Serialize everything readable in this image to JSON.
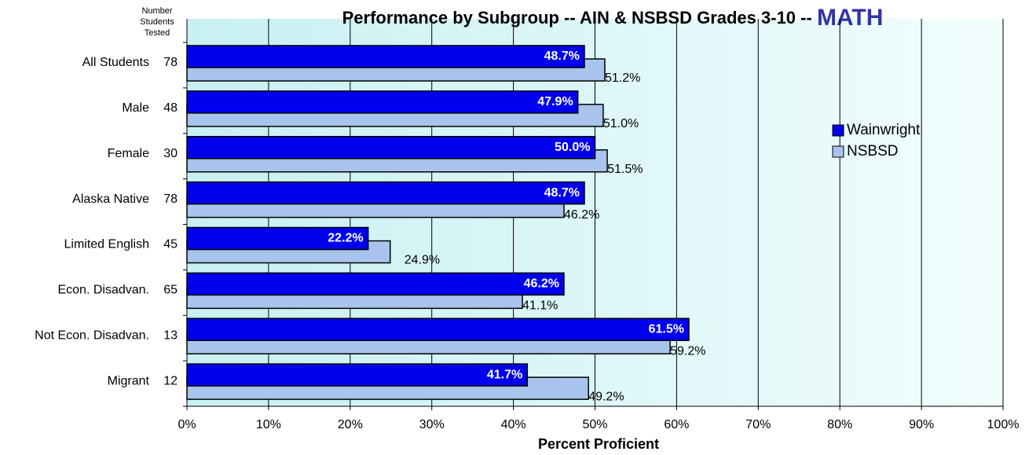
{
  "chart_data": {
    "type": "bar",
    "orientation": "horizontal",
    "title": "Performance by Subgroup -- AIN & NSBSD Grades 3-10 --",
    "title_highlight": "MATH",
    "count_header": [
      "Number",
      "Students",
      "Tested"
    ],
    "categories": [
      "All Students",
      "Male",
      "Female",
      "Alaska Native",
      "Limited English",
      "Econ. Disadvan.",
      "Not Econ. Disadvan.",
      "Migrant"
    ],
    "students_tested": [
      78,
      48,
      30,
      78,
      45,
      65,
      13,
      12
    ],
    "series": [
      {
        "name": "Wainwright",
        "color": "#0000ee",
        "values": [
          48.7,
          47.9,
          50.0,
          48.7,
          22.2,
          46.2,
          61.5,
          41.7
        ],
        "value_labels": [
          "48.7%",
          "47.9%",
          "50.0%",
          "48.7%",
          "22.2%",
          "46.2%",
          "61.5%",
          "41.7%"
        ]
      },
      {
        "name": "NSBSD",
        "color": "#a8c4ec",
        "values": [
          51.2,
          51.0,
          51.5,
          46.2,
          24.9,
          41.1,
          59.2,
          49.2
        ],
        "value_labels": [
          "51.2%",
          "51.0%",
          "51.5%",
          "46.2%",
          "24.9%",
          "41.1%",
          "59.2%",
          "49.2%"
        ]
      }
    ],
    "x_label": "Percent Proficient",
    "xlim": [
      0,
      100
    ],
    "xticks": [
      {
        "value": 0,
        "label": "0%"
      },
      {
        "value": 10,
        "label": "10%"
      },
      {
        "value": 20,
        "label": "20%"
      },
      {
        "value": 30,
        "label": "30%"
      },
      {
        "value": 40,
        "label": "40%"
      },
      {
        "value": 50,
        "label": "50%"
      },
      {
        "value": 60,
        "label": "60%"
      },
      {
        "value": 70,
        "label": "70%"
      },
      {
        "value": 80,
        "label": "80%"
      },
      {
        "value": 90,
        "label": "90%"
      },
      {
        "value": 100,
        "label": "100%"
      }
    ],
    "grid": true,
    "legend": "upper right"
  }
}
